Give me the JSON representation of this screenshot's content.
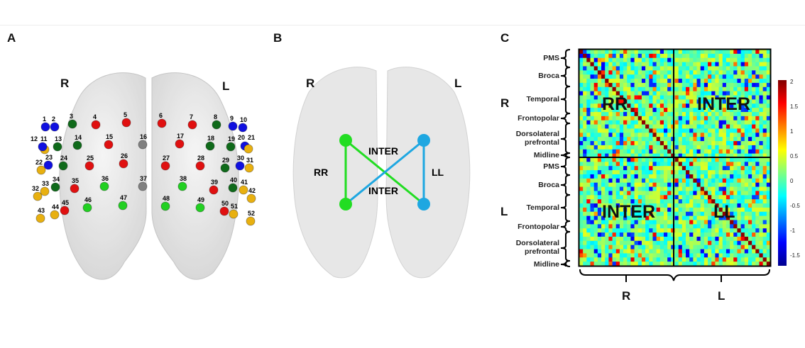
{
  "panels": {
    "a": {
      "letter": "A",
      "right_label": "R",
      "left_label": "L",
      "electrodes": [
        {
          "n": "1",
          "c": "blue"
        },
        {
          "n": "2",
          "c": "blue"
        },
        {
          "n": "3",
          "c": "darkgreen"
        },
        {
          "n": "4",
          "c": "red"
        },
        {
          "n": "5",
          "c": "red"
        },
        {
          "n": "6",
          "c": "red"
        },
        {
          "n": "7",
          "c": "red"
        },
        {
          "n": "8",
          "c": "darkgreen"
        },
        {
          "n": "9",
          "c": "blue"
        },
        {
          "n": "10",
          "c": "blue"
        },
        {
          "n": "11",
          "c": "orange"
        },
        {
          "n": "12",
          "c": "blue"
        },
        {
          "n": "13",
          "c": "darkgreen"
        },
        {
          "n": "14",
          "c": "darkgreen"
        },
        {
          "n": "15",
          "c": "red"
        },
        {
          "n": "16",
          "c": "gray"
        },
        {
          "n": "17",
          "c": "red"
        },
        {
          "n": "18",
          "c": "darkgreen"
        },
        {
          "n": "19",
          "c": "darkgreen"
        },
        {
          "n": "20",
          "c": "blue"
        },
        {
          "n": "21",
          "c": "orange"
        },
        {
          "n": "22",
          "c": "orange"
        },
        {
          "n": "23",
          "c": "blue"
        },
        {
          "n": "24",
          "c": "darkgreen"
        },
        {
          "n": "25",
          "c": "red"
        },
        {
          "n": "26",
          "c": "red"
        },
        {
          "n": "27",
          "c": "red"
        },
        {
          "n": "28",
          "c": "red"
        },
        {
          "n": "29",
          "c": "darkgreen"
        },
        {
          "n": "30",
          "c": "blue"
        },
        {
          "n": "31",
          "c": "orange"
        },
        {
          "n": "32",
          "c": "orange"
        },
        {
          "n": "33",
          "c": "orange"
        },
        {
          "n": "34",
          "c": "darkgreen"
        },
        {
          "n": "35",
          "c": "red"
        },
        {
          "n": "36",
          "c": "lightgreen"
        },
        {
          "n": "37",
          "c": "gray"
        },
        {
          "n": "38",
          "c": "lightgreen"
        },
        {
          "n": "39",
          "c": "red"
        },
        {
          "n": "40",
          "c": "darkgreen"
        },
        {
          "n": "41",
          "c": "orange"
        },
        {
          "n": "42",
          "c": "orange"
        },
        {
          "n": "43",
          "c": "orange"
        },
        {
          "n": "44",
          "c": "orange"
        },
        {
          "n": "45",
          "c": "red"
        },
        {
          "n": "46",
          "c": "lightgreen"
        },
        {
          "n": "47",
          "c": "lightgreen"
        },
        {
          "n": "48",
          "c": "lightgreen"
        },
        {
          "n": "49",
          "c": "lightgreen"
        },
        {
          "n": "50",
          "c": "red"
        },
        {
          "n": "51",
          "c": "orange"
        },
        {
          "n": "52",
          "c": "orange"
        }
      ]
    },
    "b": {
      "letter": "B",
      "right_label": "R",
      "left_label": "L",
      "rr_label": "RR",
      "ll_label": "LL",
      "inter_label_top": "INTER",
      "inter_label_bottom": "INTER",
      "colors": {
        "rr": "#22dd22",
        "ll": "#1ea7e1"
      }
    },
    "c": {
      "letter": "C",
      "side_right": "R",
      "side_left": "L",
      "row_labels_r": [
        "PMS",
        "Broca",
        "Temporal",
        "Frontopolar",
        "Dorsolateral prefrontal",
        "Midline"
      ],
      "row_labels_l": [
        "PMS",
        "Broca",
        "Temporal",
        "Frontopolar",
        "Dorsolateral prefrontal",
        "Midline"
      ],
      "quadrants": {
        "rr": "RR",
        "inter_top": "INTER",
        "inter_bottom": "INTER",
        "ll": "LL"
      },
      "bottom_labels": {
        "r": "R",
        "l": "L"
      },
      "colorbar_ticks": [
        "2",
        "1.5",
        "1",
        "0.5",
        "0",
        "-0.5",
        "-1",
        "-1.5"
      ],
      "colorbar_range": [
        -1.7,
        2.05
      ],
      "colormap": "jet"
    }
  },
  "colors": {
    "blue": "#1010e0",
    "darkgreen": "#0f6a1a",
    "red": "#e01010",
    "gray": "#808080",
    "orange": "#e8b010",
    "lightgreen": "#22d022"
  }
}
